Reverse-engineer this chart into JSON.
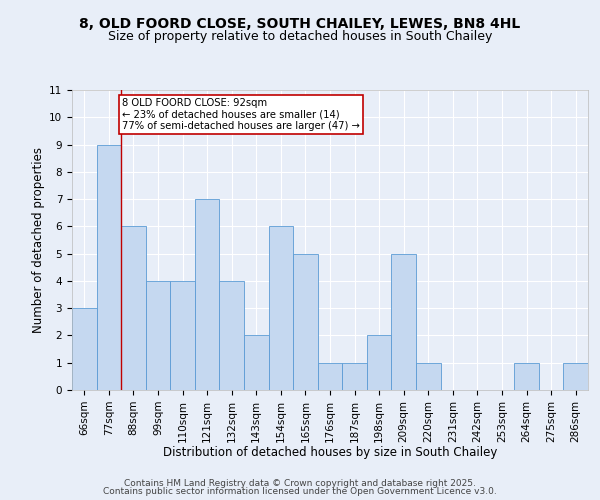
{
  "title1": "8, OLD FOORD CLOSE, SOUTH CHAILEY, LEWES, BN8 4HL",
  "title2": "Size of property relative to detached houses in South Chailey",
  "xlabel": "Distribution of detached houses by size in South Chailey",
  "ylabel": "Number of detached properties",
  "bin_labels": [
    "66sqm",
    "77sqm",
    "88sqm",
    "99sqm",
    "110sqm",
    "121sqm",
    "132sqm",
    "143sqm",
    "154sqm",
    "165sqm",
    "176sqm",
    "187sqm",
    "198sqm",
    "209sqm",
    "220sqm",
    "231sqm",
    "242sqm",
    "253sqm",
    "264sqm",
    "275sqm",
    "286sqm"
  ],
  "bar_heights": [
    3,
    9,
    6,
    4,
    4,
    7,
    4,
    2,
    6,
    5,
    1,
    1,
    2,
    5,
    1,
    0,
    0,
    0,
    1,
    0,
    1
  ],
  "bar_color": "#c5d8f0",
  "bar_edge_color": "#5b9bd5",
  "property_line_label": "8 OLD FOORD CLOSE: 92sqm",
  "annotation_line1": "← 23% of detached houses are smaller (14)",
  "annotation_line2": "77% of semi-detached houses are larger (47) →",
  "annotation_box_color": "#ffffff",
  "annotation_box_edge": "#c00000",
  "vline_color": "#c00000",
  "ylim": [
    0,
    11
  ],
  "yticks": [
    0,
    1,
    2,
    3,
    4,
    5,
    6,
    7,
    8,
    9,
    10,
    11
  ],
  "footer1": "Contains HM Land Registry data © Crown copyright and database right 2025.",
  "footer2": "Contains public sector information licensed under the Open Government Licence v3.0.",
  "background_color": "#e8eef8",
  "plot_bg_color": "#e8eef8",
  "grid_color": "#ffffff",
  "title_fontsize": 10,
  "subtitle_fontsize": 9,
  "axis_label_fontsize": 8.5,
  "tick_fontsize": 7.5,
  "footer_fontsize": 6.5
}
